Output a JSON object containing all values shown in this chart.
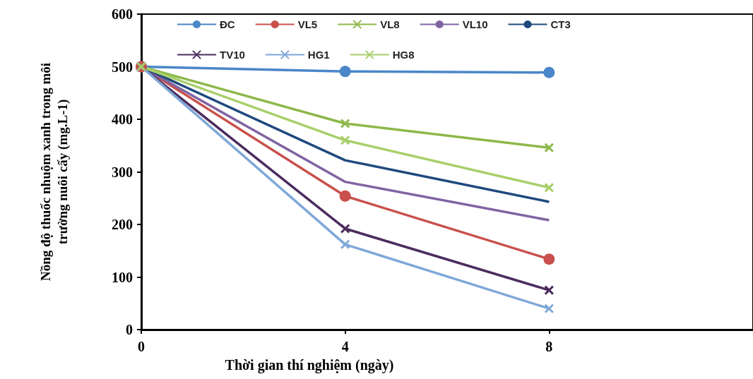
{
  "chart_data": {
    "type": "line",
    "xlabel": "Thời gian thí nghiệm (ngày)",
    "ylabel": "Nồng độ thuốc nhuộm xanh trong môi\ntrường nuôi cấy (mg.L-1)",
    "x": [
      0,
      4,
      8
    ],
    "xlim": [
      0,
      12
    ],
    "xticks": [
      0,
      4,
      8
    ],
    "ylim": [
      0,
      600
    ],
    "yticks": [
      0,
      100,
      200,
      300,
      400,
      500,
      600
    ],
    "grid": false,
    "legend": "top",
    "line_style": "solid",
    "series": [
      {
        "name": "ĐC",
        "color": "#4a86c8",
        "marker": "circle",
        "values": [
          500,
          491,
          489
        ]
      },
      {
        "name": "VL5",
        "color": "#c9504c",
        "marker": "circle",
        "values": [
          500,
          254,
          134
        ]
      },
      {
        "name": "VL8",
        "color": "#8db84a",
        "marker": "cross",
        "values": [
          500,
          392,
          346
        ]
      },
      {
        "name": "VL10",
        "color": "#8064a2",
        "marker": "none",
        "values": [
          500,
          281,
          208
        ]
      },
      {
        "name": "CT3",
        "color": "#1f497d",
        "marker": "none",
        "values": [
          500,
          322,
          243
        ]
      },
      {
        "name": "TV10",
        "color": "#4b2c5e",
        "marker": "cross",
        "values": [
          500,
          192,
          75
        ]
      },
      {
        "name": "HG1",
        "color": "#7fa8d8",
        "marker": "cross",
        "values": [
          500,
          162,
          40
        ]
      },
      {
        "name": "HG8",
        "color": "#a8cf6a",
        "marker": "cross",
        "values": [
          500,
          360,
          270
        ]
      }
    ]
  }
}
